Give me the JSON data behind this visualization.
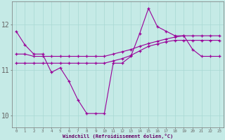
{
  "xlabel": "Windchill (Refroidissement éolien,°C)",
  "background_color": "#c5eae6",
  "grid_color": "#a8d8d2",
  "line_color": "#990099",
  "x": [
    0,
    1,
    2,
    3,
    4,
    5,
    6,
    7,
    8,
    9,
    10,
    11,
    12,
    13,
    14,
    15,
    16,
    17,
    18,
    19,
    20,
    21,
    22,
    23
  ],
  "line1": [
    11.85,
    11.55,
    11.35,
    11.35,
    10.95,
    11.05,
    10.75,
    10.35,
    10.05,
    10.05,
    10.05,
    11.15,
    11.15,
    11.3,
    11.8,
    12.35,
    11.95,
    11.85,
    11.75,
    11.75,
    11.45,
    11.3,
    11.3,
    11.3
  ],
  "line2": [
    11.35,
    11.35,
    11.3,
    11.3,
    11.3,
    11.3,
    11.3,
    11.3,
    11.3,
    11.3,
    11.3,
    11.35,
    11.4,
    11.45,
    11.52,
    11.58,
    11.63,
    11.68,
    11.72,
    11.75,
    11.75,
    11.75,
    11.75,
    11.75
  ],
  "line3": [
    11.15,
    11.15,
    11.15,
    11.15,
    11.15,
    11.15,
    11.15,
    11.15,
    11.15,
    11.15,
    11.15,
    11.2,
    11.25,
    11.32,
    11.42,
    11.52,
    11.57,
    11.62,
    11.65,
    11.65,
    11.65,
    11.65,
    11.65,
    11.65
  ],
  "ylim": [
    9.75,
    12.5
  ],
  "yticks": [
    10,
    11,
    12
  ],
  "xlim": [
    -0.5,
    23.5
  ]
}
